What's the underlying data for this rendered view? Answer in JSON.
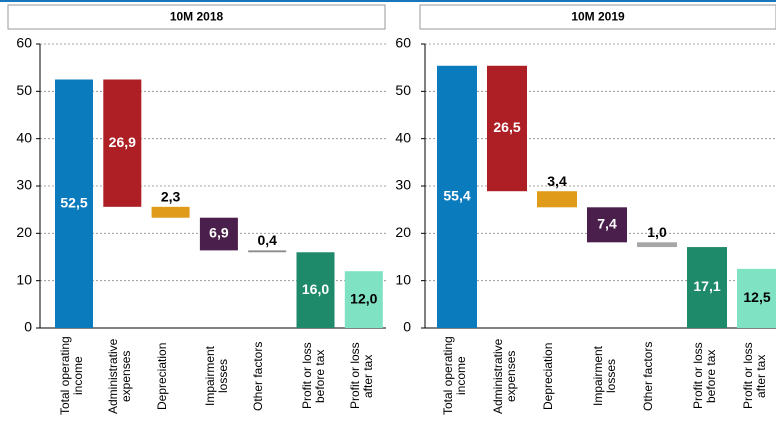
{
  "chart_data": [
    {
      "type": "waterfall",
      "title": "10M 2018",
      "categories": [
        "Total operating income",
        "Administrative expenses",
        "Depreciation",
        "Impairment losses",
        "Other factors",
        "Profit or loss before tax",
        "Profit or loss after tax"
      ],
      "values": [
        52.5,
        26.9,
        2.3,
        6.9,
        0.4,
        16.0,
        12.0
      ],
      "value_labels": [
        "52,5",
        "26,9",
        "2,3",
        "6,9",
        "0,4",
        "16,0",
        "12,0"
      ],
      "measure": [
        "total",
        "decrease",
        "decrease",
        "decrease",
        "decrease",
        "total",
        "total"
      ],
      "colors": [
        "#0a7bbd",
        "#ad1f24",
        "#e09b1a",
        "#4a1f4b",
        "#8c8c8c",
        "#1f8a6a",
        "#7fe3c3"
      ],
      "ylim": [
        0,
        60
      ],
      "yticks": [
        0,
        10,
        20,
        30,
        40,
        50,
        60
      ],
      "grid": true
    },
    {
      "type": "waterfall",
      "title": "10M 2019",
      "categories": [
        "Total operating income",
        "Administrative expenses",
        "Depreciation",
        "Impairment losses",
        "Other factors",
        "Profit or loss before tax",
        "Profit or loss after tax"
      ],
      "values": [
        55.4,
        26.5,
        3.4,
        7.4,
        1.0,
        17.1,
        12.5
      ],
      "value_labels": [
        "55,4",
        "26,5",
        "3,4",
        "7,4",
        "1,0",
        "17,1",
        "12,5"
      ],
      "measure": [
        "total",
        "decrease",
        "decrease",
        "decrease",
        "decrease",
        "total",
        "total"
      ],
      "colors": [
        "#0a7bbd",
        "#ad1f24",
        "#e09b1a",
        "#4a1f4b",
        "#a6a6a6",
        "#1f8a6a",
        "#7fe3c3"
      ],
      "ylim": [
        0,
        60
      ],
      "yticks": [
        0,
        10,
        20,
        30,
        40,
        50,
        60
      ],
      "grid": true
    }
  ]
}
